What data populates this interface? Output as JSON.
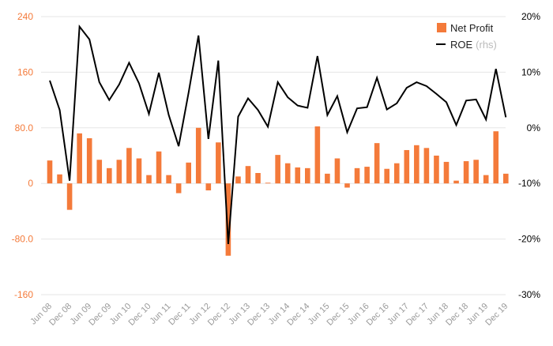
{
  "colors": {
    "bar": "#F47A3A",
    "line": "#000000",
    "left_axis_text": "#F47A3A",
    "right_axis_text": "#000000",
    "x_axis_text": "#9A9A9A",
    "grid": "#E6E6E6"
  },
  "chart_data": {
    "type": "bar+line",
    "title": "",
    "xlabel": "",
    "ylabel_left": "",
    "ylabel_right": "",
    "ylim_left": [
      -160,
      240
    ],
    "ylim_right": [
      -30,
      20
    ],
    "left_ticks": [
      {
        "v": 240,
        "label": "240"
      },
      {
        "v": 160,
        "label": "160"
      },
      {
        "v": 80,
        "label": "80.0"
      },
      {
        "v": 0,
        "label": "0"
      },
      {
        "v": -80,
        "label": "-80.0"
      },
      {
        "v": -160,
        "label": "-160"
      }
    ],
    "right_ticks": [
      {
        "v": 20,
        "label": "20%"
      },
      {
        "v": 10,
        "label": "10%"
      },
      {
        "v": 0,
        "label": "0%"
      },
      {
        "v": -10,
        "label": "-10%"
      },
      {
        "v": -20,
        "label": "-20%"
      },
      {
        "v": -30,
        "label": "-30%"
      }
    ],
    "x_tick_labels": [
      "Jun 08",
      "Dec 08",
      "Jun 09",
      "Dec 09",
      "Jun 10",
      "Dec 10",
      "Jun 11",
      "Dec 11",
      "Jun 12",
      "Dec 12",
      "Jun 13",
      "Dec 13",
      "Jun 14",
      "Dec 14",
      "Jun 15",
      "Dec 15",
      "Jun 16",
      "Dec 16",
      "Jun 17",
      "Dec 17",
      "Jun 18",
      "Dec 18",
      "Jun 19",
      "Dec 19"
    ],
    "legend": {
      "position": "top-right",
      "bar_label": "Net Profit",
      "line_label": "ROE",
      "line_suffix": "(rhs)"
    },
    "series": [
      {
        "name": "Net Profit",
        "axis": "left",
        "kind": "bar",
        "values": [
          33,
          13,
          -38,
          72,
          65,
          34,
          22,
          34,
          51,
          36,
          12,
          46,
          12,
          -14,
          30,
          80,
          -10,
          59,
          -104,
          10,
          25,
          15,
          1,
          41,
          29,
          23,
          22,
          82,
          14,
          36,
          -6,
          22,
          24,
          58,
          21,
          29,
          48,
          55,
          51,
          40,
          31,
          4,
          32,
          34,
          12,
          75,
          14
        ]
      },
      {
        "name": "ROE",
        "axis": "right",
        "kind": "line",
        "values": [
          8.5,
          3.2,
          -9.5,
          18.2,
          15.9,
          8.2,
          5.0,
          7.8,
          11.7,
          8.0,
          2.5,
          9.9,
          2.3,
          -3.3,
          6.3,
          16.6,
          -2.0,
          12.1,
          -20.9,
          2.0,
          5.3,
          3.2,
          0.2,
          8.2,
          5.5,
          4.0,
          3.6,
          12.9,
          2.3,
          5.7,
          -0.8,
          3.5,
          3.7,
          9.0,
          3.3,
          4.4,
          7.2,
          8.2,
          7.5,
          6.1,
          4.6,
          0.5,
          4.9,
          5.1,
          1.5,
          10.6,
          1.9
        ]
      }
    ]
  }
}
